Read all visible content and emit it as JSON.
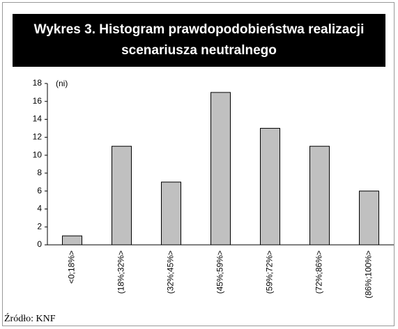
{
  "chart_data": {
    "type": "bar",
    "title": "Wykres 3. Histogram prawdopodobieństwa realizacji scenariusza neutralnego",
    "y_label": "(ni)",
    "categories": [
      "<0;18%>",
      "(18%;32%>",
      "(32%;45%>",
      "(45%;59%>",
      "(59%;72%>",
      "(72%;86%>",
      "(86%;100%>"
    ],
    "values": [
      1,
      11,
      7,
      17,
      13,
      11,
      6
    ],
    "color": "#c0c0c0",
    "ylim": [
      0,
      18
    ],
    "yticks": [
      0,
      2,
      4,
      6,
      8,
      10,
      12,
      14,
      16,
      18
    ],
    "grid": false,
    "source": "Źródło: KNF"
  }
}
